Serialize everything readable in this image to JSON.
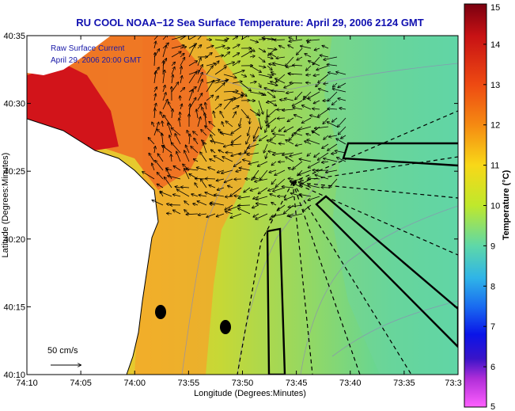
{
  "title": "RU COOL  NOAA−12  Sea Surface Temperature:  April 29, 2006 2124 GMT",
  "annotation": {
    "line1": "Raw Surface Current",
    "line2": "April 29, 2006 20:00 GMT"
  },
  "scale_label": "50 cm/s",
  "chart_data": {
    "type": "heatmap",
    "xlabel": "Longitude (Degrees:Minutes)",
    "ylabel": "Latitude (Degrees:Minutes)",
    "x_ticks": [
      "74:10",
      "74:05",
      "74:00",
      "73:55",
      "73:50",
      "73:45",
      "73:40",
      "73:35",
      "73:3"
    ],
    "y_ticks": [
      "40:35",
      "40:30",
      "40:25",
      "40:20",
      "40:15",
      "40:10"
    ],
    "colorbar": {
      "label": "Temperature (°C)",
      "ticks": [
        "15",
        "14",
        "13",
        "12",
        "11",
        "10",
        "9",
        "8",
        "7",
        "6",
        "5"
      ],
      "range": [
        5,
        15
      ]
    }
  }
}
